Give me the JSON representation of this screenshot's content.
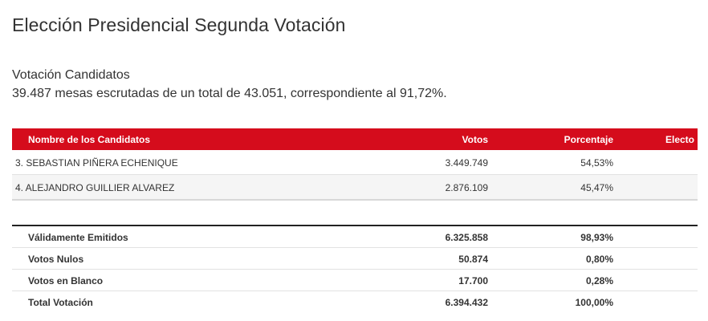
{
  "header": {
    "title": "Elección Presidencial Segunda Votación",
    "section_title": "Votación Candidatos",
    "summary": "39.487 mesas escrutadas de un total de 43.051, correspondiente al 91,72%."
  },
  "candidates_table": {
    "columns": {
      "name": "Nombre de los Candidatos",
      "votes": "Votos",
      "percent": "Porcentaje",
      "elected": "Electo"
    },
    "rows": [
      {
        "name": "3. SEBASTIAN PIÑERA ECHENIQUE",
        "votes": "3.449.749",
        "percent": "54,53%",
        "elected": ""
      },
      {
        "name": "4. ALEJANDRO GUILLIER ALVAREZ",
        "votes": "2.876.109",
        "percent": "45,47%",
        "elected": ""
      }
    ]
  },
  "totals_table": {
    "rows": [
      {
        "label": "Válidamente Emitidos",
        "votes": "6.325.858",
        "percent": "98,93%"
      },
      {
        "label": "Votos Nulos",
        "votes": "50.874",
        "percent": "0,80%"
      },
      {
        "label": "Votos en Blanco",
        "votes": "17.700",
        "percent": "0,28%"
      },
      {
        "label": "Total Votación",
        "votes": "6.394.432",
        "percent": "100,00%"
      }
    ]
  },
  "colors": {
    "header_red": "#d50c1c",
    "text": "#333333",
    "row_alt": "#f5f5f5"
  }
}
